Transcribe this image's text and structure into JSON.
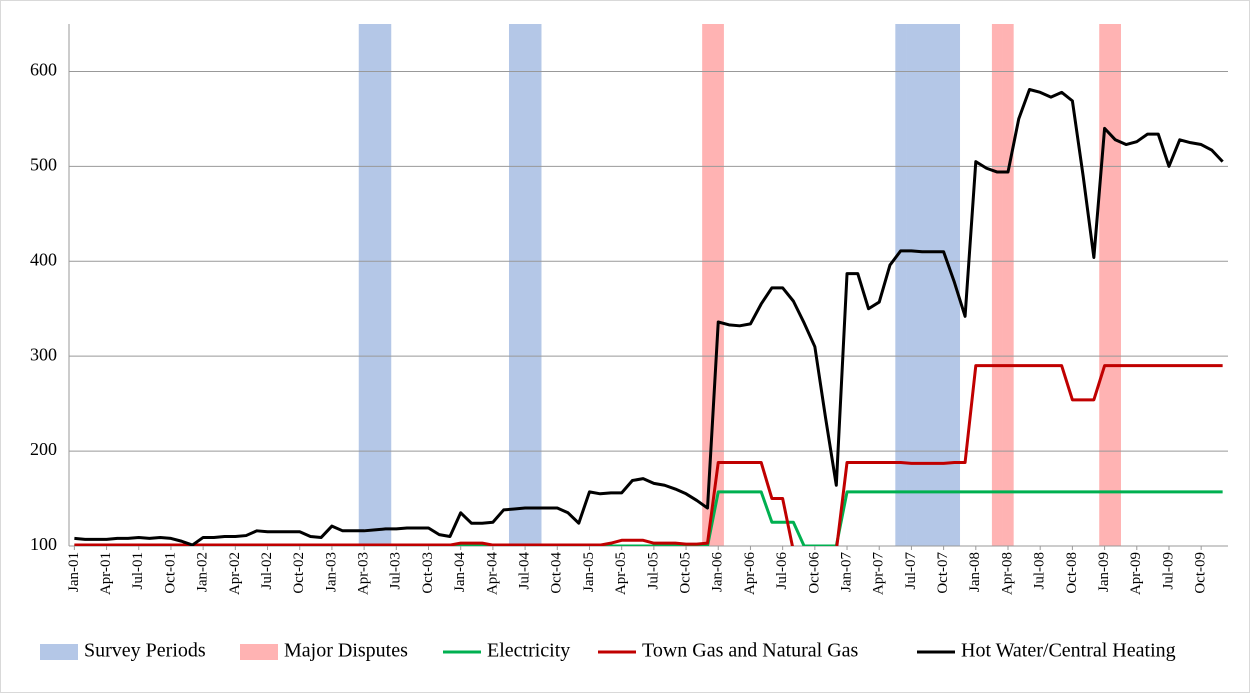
{
  "chart_data": {
    "type": "line",
    "categories": [
      "Jan-01",
      null,
      null,
      "Apr-01",
      null,
      null,
      "Jul-01",
      null,
      null,
      "Oct-01",
      null,
      null,
      "Jan-02",
      null,
      null,
      "Apr-02",
      null,
      null,
      "Jul-02",
      null,
      null,
      "Oct-02",
      null,
      null,
      "Jan-03",
      null,
      null,
      "Apr-03",
      null,
      null,
      "Jul-03",
      null,
      null,
      "Oct-03",
      null,
      null,
      "Jan-04",
      null,
      null,
      "Apr-04",
      null,
      null,
      "Jul-04",
      null,
      null,
      "Oct-04",
      null,
      null,
      "Jan-05",
      null,
      null,
      "Apr-05",
      null,
      null,
      "Jul-05",
      null,
      null,
      "Oct-05",
      null,
      null,
      "Jan-06",
      null,
      null,
      "Apr-06",
      null,
      null,
      "Jul-06",
      null,
      null,
      "Oct-06",
      null,
      null,
      "Jan-07",
      null,
      null,
      "Apr-07",
      null,
      null,
      "Jul-07",
      null,
      null,
      "Oct-07",
      null,
      null,
      "Jan-08",
      null,
      null,
      "Apr-08",
      null,
      null,
      "Jul-08",
      null,
      null,
      "Oct-08",
      null,
      null,
      "Jan-09",
      null,
      null,
      "Apr-09",
      null,
      null,
      "Jul-09",
      null,
      null,
      "Oct-09",
      null,
      null
    ],
    "ylim": [
      100,
      650
    ],
    "yticks": [
      100,
      200,
      300,
      400,
      500,
      600
    ],
    "grid": true,
    "series": [
      {
        "name": "Survey Periods",
        "type": "bar",
        "color": "#b4c7e7",
        "values": [
          null,
          null,
          null,
          null,
          null,
          null,
          null,
          null,
          null,
          null,
          null,
          null,
          null,
          null,
          null,
          null,
          null,
          null,
          null,
          null,
          null,
          null,
          null,
          null,
          null,
          null,
          null,
          650,
          650,
          650,
          null,
          null,
          null,
          null,
          null,
          null,
          null,
          null,
          null,
          null,
          null,
          650,
          650,
          650,
          null,
          null,
          null,
          null,
          null,
          null,
          null,
          null,
          null,
          null,
          null,
          null,
          null,
          null,
          null,
          null,
          null,
          null,
          null,
          null,
          null,
          null,
          null,
          null,
          null,
          null,
          null,
          null,
          null,
          null,
          null,
          null,
          null,
          650,
          650,
          650,
          650,
          650,
          650,
          null,
          null,
          null,
          null,
          null,
          null,
          null,
          null,
          null,
          null,
          null,
          null,
          null,
          null,
          null,
          null,
          null,
          null,
          null,
          null,
          null,
          null,
          null,
          null,
          null
        ]
      },
      {
        "name": "Major Disputes",
        "type": "bar",
        "color": "#ffb3b3",
        "values": [
          null,
          null,
          null,
          null,
          null,
          null,
          null,
          null,
          null,
          null,
          null,
          null,
          null,
          null,
          null,
          null,
          null,
          null,
          null,
          null,
          null,
          null,
          null,
          null,
          null,
          null,
          null,
          null,
          null,
          null,
          null,
          null,
          null,
          null,
          null,
          null,
          null,
          null,
          null,
          null,
          null,
          null,
          null,
          null,
          null,
          null,
          null,
          null,
          null,
          null,
          null,
          null,
          null,
          null,
          null,
          null,
          null,
          null,
          null,
          650,
          650,
          null,
          null,
          null,
          null,
          null,
          null,
          null,
          null,
          null,
          null,
          null,
          null,
          null,
          null,
          null,
          null,
          null,
          null,
          null,
          null,
          null,
          null,
          null,
          null,
          null,
          650,
          650,
          null,
          null,
          null,
          null,
          null,
          null,
          null,
          null,
          650,
          650,
          null,
          null,
          null,
          null,
          null,
          null,
          null,
          null,
          null,
          null
        ]
      },
      {
        "name": "Electricity",
        "type": "line",
        "color": "#00b050",
        "values": [
          100,
          100,
          100,
          100,
          100,
          100,
          100,
          100,
          100,
          100,
          100,
          100,
          100,
          100,
          100,
          100,
          100,
          100,
          100,
          100,
          100,
          100,
          100,
          100,
          100,
          100,
          100,
          100,
          100,
          100,
          100,
          100,
          100,
          100,
          100,
          100,
          100,
          100,
          100,
          100,
          100,
          100,
          100,
          100,
          100,
          100,
          100,
          100,
          100,
          100,
          100,
          100,
          100,
          100,
          100,
          100,
          100,
          100,
          100,
          100,
          157,
          157,
          157,
          157,
          157,
          125,
          125,
          125,
          100,
          100,
          100,
          100,
          157,
          157,
          157,
          157,
          157,
          157,
          157,
          157,
          157,
          157,
          157,
          157,
          157,
          157,
          157,
          157,
          157,
          157,
          157,
          157,
          157,
          157,
          157,
          157,
          157,
          157,
          157,
          157,
          157,
          157,
          157,
          157,
          157,
          157,
          157,
          157
        ]
      },
      {
        "name": "Town Gas and Natural Gas",
        "type": "line",
        "color": "#c00000",
        "values": [
          101,
          101,
          101,
          101,
          101,
          101,
          101,
          101,
          101,
          101,
          101,
          101,
          101,
          101,
          101,
          101,
          101,
          101,
          101,
          101,
          101,
          101,
          101,
          101,
          101,
          101,
          101,
          101,
          101,
          101,
          101,
          101,
          101,
          101,
          101,
          101,
          103,
          103,
          103,
          101,
          101,
          101,
          101,
          101,
          101,
          101,
          101,
          101,
          101,
          101,
          103,
          106,
          106,
          106,
          103,
          103,
          103,
          102,
          102,
          103,
          188,
          188,
          188,
          188,
          188,
          150,
          150,
          95,
          null,
          null,
          null,
          95,
          188,
          188,
          188,
          188,
          188,
          188,
          187,
          187,
          187,
          187,
          188,
          188,
          290,
          290,
          290,
          290,
          290,
          290,
          290,
          290,
          290,
          254,
          254,
          254,
          290,
          290,
          290,
          290,
          290,
          290,
          290,
          290,
          290,
          290,
          290,
          290
        ]
      },
      {
        "name": "Hot Water/Central Heating",
        "type": "line",
        "color": "#000000",
        "values": [
          108,
          107,
          107,
          107,
          108,
          108,
          109,
          108,
          109,
          108,
          105,
          101,
          109,
          109,
          110,
          110,
          111,
          116,
          115,
          115,
          115,
          115,
          110,
          109,
          121,
          116,
          116,
          116,
          117,
          118,
          118,
          119,
          119,
          119,
          112,
          110,
          135,
          124,
          124,
          125,
          138,
          139,
          140,
          140,
          140,
          140,
          135,
          124,
          157,
          155,
          156,
          156,
          169,
          171,
          166,
          164,
          160,
          155,
          148,
          140,
          336,
          333,
          332,
          334,
          355,
          372,
          372,
          358,
          335,
          310,
          235,
          164,
          387,
          387,
          350,
          357,
          396,
          411,
          411,
          410,
          410,
          410,
          378,
          342,
          505,
          498,
          494,
          494,
          550,
          581,
          578,
          573,
          578,
          569,
          490,
          404,
          540,
          528,
          523,
          526,
          534,
          534,
          500,
          528,
          525,
          523,
          517,
          505
        ]
      }
    ]
  }
}
